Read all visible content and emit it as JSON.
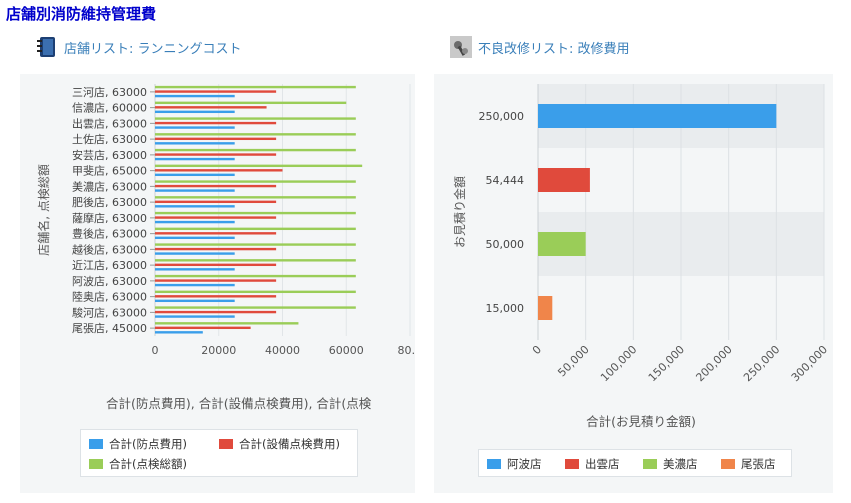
{
  "page_title": "店舗別消防維持管理費",
  "left_panel": {
    "title": "店舗リスト: ランニングコスト",
    "icon": "notebook-icon"
  },
  "right_panel": {
    "title": "不良改修リスト: 改修費用",
    "icon": "tools-icon"
  },
  "colors": {
    "blue": "#3a9eea",
    "red": "#e04a3c",
    "green": "#9acd58",
    "orange": "#f0854a",
    "panel_bg": "#f4f6f7"
  },
  "chart_data": [
    {
      "type": "bar",
      "orientation": "horizontal",
      "categories": [
        "三河店, 63000",
        "信濃店, 60000",
        "出雲店, 63000",
        "土佐店, 63000",
        "安芸店, 63000",
        "甲斐店, 65000",
        "美濃店, 63000",
        "肥後店, 63000",
        "薩摩店, 63000",
        "豊後店, 63000",
        "越後店, 63000",
        "近江店, 63000",
        "阿波店, 63000",
        "陸奥店, 63000",
        "駿河店, 63000",
        "尾張店, 45000"
      ],
      "series": [
        {
          "name": "合計(防点費用)",
          "color": "#3a9eea",
          "values": [
            25000,
            25000,
            25000,
            25000,
            25000,
            25000,
            25000,
            25000,
            25000,
            25000,
            25000,
            25000,
            25000,
            25000,
            25000,
            15000
          ]
        },
        {
          "name": "合計(設備点検費用)",
          "color": "#e04a3c",
          "values": [
            38000,
            35000,
            38000,
            38000,
            38000,
            40000,
            38000,
            38000,
            38000,
            38000,
            38000,
            38000,
            38000,
            38000,
            38000,
            30000
          ]
        },
        {
          "name": "合計(点検総額)",
          "color": "#9acd58",
          "values": [
            63000,
            60000,
            63000,
            63000,
            63000,
            65000,
            63000,
            63000,
            63000,
            63000,
            63000,
            63000,
            63000,
            63000,
            63000,
            45000
          ]
        }
      ],
      "xticks": [
        "0",
        "20000",
        "40000",
        "60000",
        "80…"
      ],
      "xlim": [
        0,
        80000
      ],
      "xlabel": "合計(防点費用), 合計(設備点検費用), 合計(点検",
      "ylabel": "店舗名, 点検総額",
      "legend_position": "bottom"
    },
    {
      "type": "bar",
      "orientation": "horizontal",
      "categories": [
        "250,000",
        "54,444",
        "50,000",
        "15,000"
      ],
      "series": [
        {
          "name": "阿波店",
          "color": "#3a9eea",
          "values": [
            250000,
            null,
            null,
            null
          ]
        },
        {
          "name": "出雲店",
          "color": "#e04a3c",
          "values": [
            null,
            54444,
            null,
            null
          ]
        },
        {
          "name": "美濃店",
          "color": "#9acd58",
          "values": [
            null,
            null,
            50000,
            null
          ]
        },
        {
          "name": "尾張店",
          "color": "#f0854a",
          "values": [
            null,
            null,
            null,
            15000
          ]
        }
      ],
      "xticks": [
        "0",
        "50,000",
        "100,000",
        "150,000",
        "200,000",
        "250,000",
        "300,000"
      ],
      "xlim": [
        0,
        300000
      ],
      "xlabel": "合計(お見積り金額)",
      "ylabel": "お見積り金額",
      "legend_position": "bottom"
    }
  ]
}
